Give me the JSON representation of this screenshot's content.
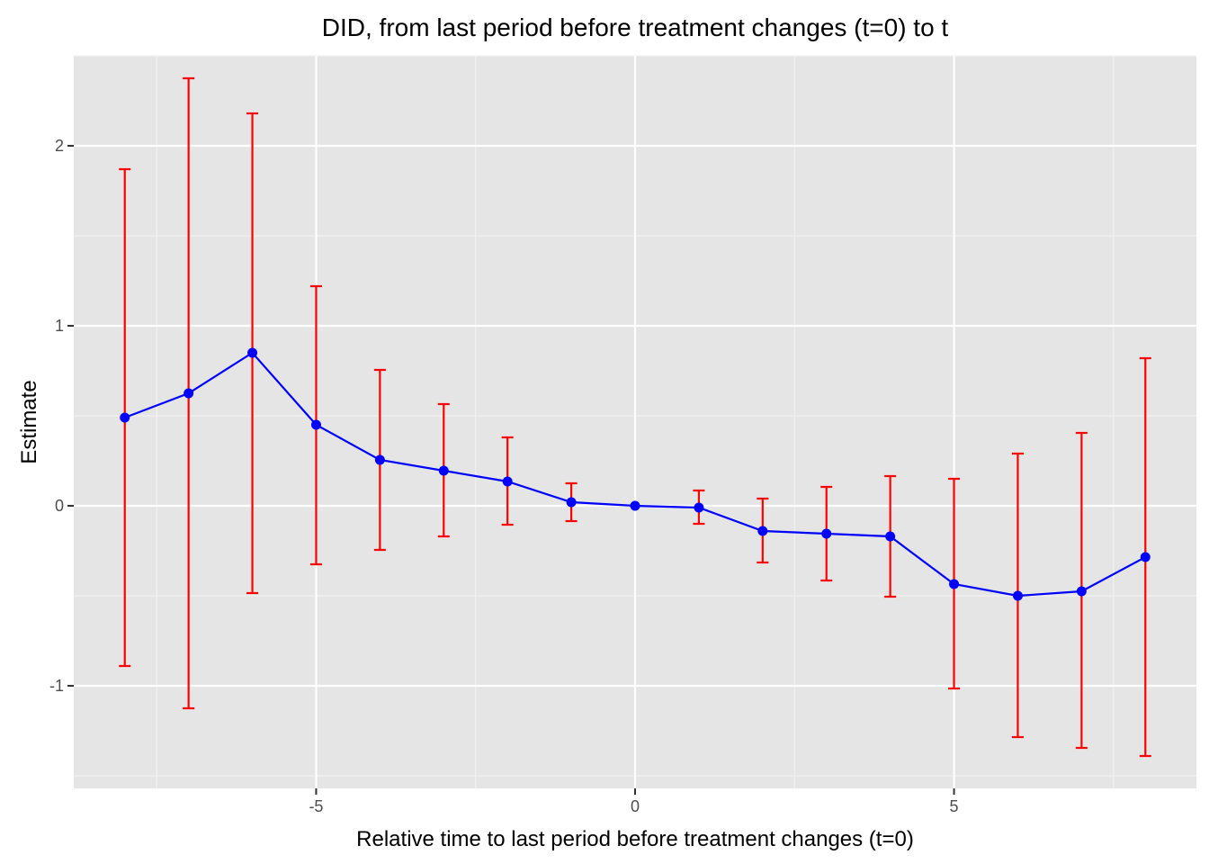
{
  "chart_data": {
    "type": "line",
    "title": "DID, from last period before treatment changes (t=0) to t",
    "xlabel": "Relative time to last period before treatment changes (t=0)",
    "ylabel": "Estimate",
    "xlim": [
      -8.8,
      8.8
    ],
    "ylim": [
      -1.57,
      2.5
    ],
    "x_ticks": [
      -5,
      0,
      5
    ],
    "x_tick_labels": [
      "-5",
      "0",
      "5"
    ],
    "x_minor_breaks": [
      -7.5,
      -2.5,
      2.5,
      7.5
    ],
    "y_ticks": [
      -1,
      0,
      1,
      2
    ],
    "y_tick_labels": [
      "-1",
      "0",
      "1",
      "2"
    ],
    "y_minor_breaks": [
      -1.5,
      -0.5,
      0.5,
      1.5,
      2.5
    ],
    "grid": true,
    "legend": "none",
    "series": [
      {
        "x": [
          -8,
          -7,
          -6,
          -5,
          -4,
          -3,
          -2,
          -1,
          0,
          1,
          2,
          3,
          4,
          5,
          6,
          7,
          8
        ],
        "values": [
          0.49,
          0.625,
          0.85,
          0.45,
          0.255,
          0.195,
          0.135,
          0.02,
          0.0,
          -0.01,
          -0.14,
          -0.155,
          -0.17,
          -0.435,
          -0.5,
          -0.475,
          -0.285
        ],
        "ci_low": [
          -0.89,
          -1.125,
          -0.485,
          -0.325,
          -0.245,
          -0.17,
          -0.105,
          -0.085,
          0.0,
          -0.1,
          -0.315,
          -0.415,
          -0.505,
          -1.015,
          -1.285,
          -1.345,
          -1.39
        ],
        "ci_high": [
          1.87,
          2.375,
          2.18,
          1.22,
          0.755,
          0.565,
          0.38,
          0.125,
          0.0,
          0.085,
          0.04,
          0.105,
          0.165,
          0.15,
          0.29,
          0.405,
          0.82
        ]
      }
    ],
    "colors": {
      "line": "#0000ff",
      "point": "#0000ff",
      "error_bar": "#ff0000",
      "panel_bg": "#e5e5e5",
      "grid_major": "#ffffff",
      "grid_minor": "#f2f2f2",
      "tick": "#333333"
    }
  }
}
